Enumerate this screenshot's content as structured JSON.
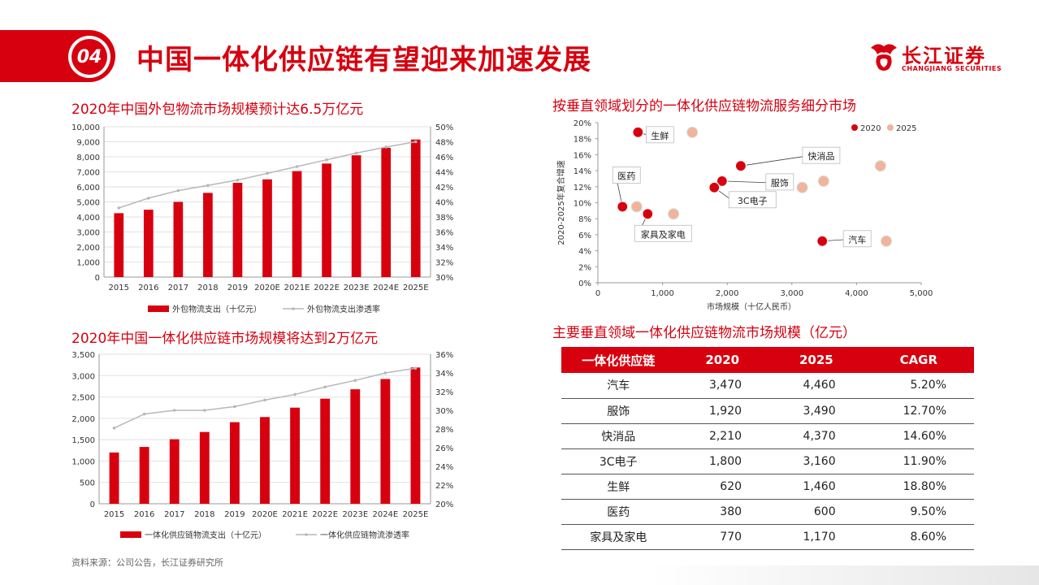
{
  "header": {
    "badge": "04",
    "title": "中国一体化供应链有望迎来加速发展",
    "logo_cn": "长江证券",
    "logo_en": "CHANGJIANG SECURITIES"
  },
  "source": "资料来源：公司公告，长江证券研究所",
  "colors": {
    "accent": "#d7000f",
    "line": "#b8b8b8",
    "scatter2025": "#f0b49a"
  },
  "chart_data": [
    {
      "type": "bar",
      "title": "2020年中国外包物流市场规模预计达6.5万亿元",
      "categories": [
        "2015",
        "2016",
        "2017",
        "2018",
        "2019",
        "2020E",
        "2021E",
        "2022E",
        "2023E",
        "2024E",
        "2025E"
      ],
      "series": [
        {
          "name": "外包物流支出（十亿元）",
          "type": "bar",
          "axis": "left",
          "values": [
            4250,
            4480,
            5000,
            5600,
            6270,
            6500,
            7050,
            7550,
            8100,
            8600,
            9150
          ]
        },
        {
          "name": "外包物流支出渗透率",
          "type": "line",
          "axis": "right",
          "values": [
            39.2,
            40.5,
            41.5,
            42.2,
            42.9,
            43.8,
            44.7,
            45.6,
            46.5,
            47.3,
            48.0
          ]
        }
      ],
      "ylim": [
        0,
        10000
      ],
      "yticks": [
        "0",
        "1,000",
        "2,000",
        "3,000",
        "4,000",
        "5,000",
        "6,000",
        "7,000",
        "8,000",
        "9,000",
        "10,000"
      ],
      "y2lim": [
        30,
        50
      ],
      "y2ticks": [
        "30%",
        "32%",
        "34%",
        "36%",
        "38%",
        "40%",
        "42%",
        "44%",
        "46%",
        "48%",
        "50%"
      ],
      "grid": true,
      "legend": "bottom"
    },
    {
      "type": "bar",
      "title": "2020年中国一体化供应链市场规模将达到2万亿元",
      "categories": [
        "2015",
        "2016",
        "2017",
        "2018",
        "2019",
        "2020E",
        "2021E",
        "2022E",
        "2023E",
        "2024E",
        "2025E"
      ],
      "series": [
        {
          "name": "一体化供应链物流支出（十亿元）",
          "type": "bar",
          "axis": "left",
          "values": [
            1200,
            1330,
            1510,
            1680,
            1910,
            2030,
            2250,
            2460,
            2680,
            2920,
            3190
          ]
        },
        {
          "name": "一体化供应链物流渗透率",
          "type": "line",
          "axis": "right",
          "values": [
            28.1,
            29.6,
            30.0,
            30.0,
            30.4,
            31.1,
            31.7,
            32.5,
            33.2,
            34.0,
            34.5
          ]
        }
      ],
      "ylim": [
        0,
        3500
      ],
      "yticks": [
        "0",
        "500",
        "1,000",
        "1,500",
        "2,000",
        "2,500",
        "3,000",
        "3,500"
      ],
      "y2lim": [
        20,
        36
      ],
      "y2ticks": [
        "20%",
        "22%",
        "24%",
        "26%",
        "28%",
        "30%",
        "32%",
        "34%",
        "36%"
      ],
      "grid": true,
      "legend": "bottom"
    },
    {
      "type": "scatter",
      "title": "按垂直领域划分的一体化供应链物流服务细分市场",
      "xlabel": "市场规模（十亿人民币）",
      "ylabel": "2020-2025年复合增速",
      "xlim": [
        0,
        5000
      ],
      "xticks": [
        "0",
        "1,000",
        "2,000",
        "3,000",
        "4,000",
        "5,000"
      ],
      "ylim": [
        0,
        20
      ],
      "yticks": [
        "0%",
        "2%",
        "4%",
        "6%",
        "8%",
        "10%",
        "12%",
        "14%",
        "16%",
        "18%",
        "20%"
      ],
      "legend": "top-right",
      "series": [
        {
          "name": "2020",
          "points": [
            {
              "label": "汽车",
              "x": 3470,
              "y": 5.2
            },
            {
              "label": "服饰",
              "x": 1920,
              "y": 12.7
            },
            {
              "label": "快消品",
              "x": 2210,
              "y": 14.6
            },
            {
              "label": "3C电子",
              "x": 1800,
              "y": 11.9
            },
            {
              "label": "生鲜",
              "x": 620,
              "y": 18.8
            },
            {
              "label": "医药",
              "x": 380,
              "y": 9.5
            },
            {
              "label": "家具及家电",
              "x": 770,
              "y": 8.6
            }
          ]
        },
        {
          "name": "2025",
          "points": [
            {
              "x": 4460,
              "y": 5.2
            },
            {
              "x": 3490,
              "y": 12.7
            },
            {
              "x": 4370,
              "y": 14.6
            },
            {
              "x": 3160,
              "y": 11.9
            },
            {
              "x": 1460,
              "y": 18.8
            },
            {
              "x": 600,
              "y": 9.5
            },
            {
              "x": 1170,
              "y": 8.6
            }
          ]
        }
      ]
    },
    {
      "type": "table",
      "title": "主要垂直领域一体化供应链物流市场规模（亿元）",
      "columns": [
        "一体化供应链",
        "2020",
        "2025",
        "CAGR"
      ],
      "rows": [
        [
          "汽车",
          "3,470",
          "4,460",
          "5.20%"
        ],
        [
          "服饰",
          "1,920",
          "3,490",
          "12.70%"
        ],
        [
          "快消品",
          "2,210",
          "4,370",
          "14.60%"
        ],
        [
          "3C电子",
          "1,800",
          "3,160",
          "11.90%"
        ],
        [
          "生鲜",
          "620",
          "1,460",
          "18.80%"
        ],
        [
          "医药",
          "380",
          "600",
          "9.50%"
        ],
        [
          "家具及家电",
          "770",
          "1,170",
          "8.60%"
        ]
      ]
    }
  ]
}
